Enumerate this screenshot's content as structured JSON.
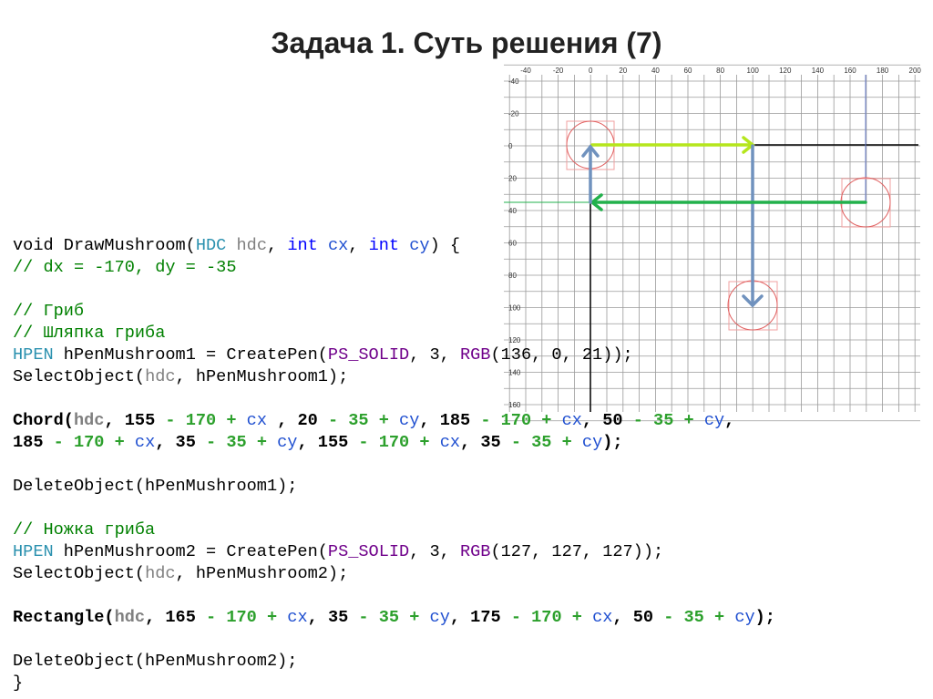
{
  "title": "Задача 1. Суть решения (7)",
  "diagram": {
    "x_labels": [
      -40,
      -20,
      0,
      20,
      40,
      60,
      80,
      100,
      120,
      140,
      160,
      180,
      200
    ],
    "y_labels": [
      -40,
      -20,
      0,
      20,
      40,
      60,
      80,
      100,
      120,
      140,
      160
    ]
  },
  "code": {
    "lines": [
      [
        [
          "void DrawMushroom(",
          "p"
        ],
        [
          "HDC",
          "t"
        ],
        [
          " hdc",
          "v"
        ],
        [
          ", ",
          "p"
        ],
        [
          "int",
          "k"
        ],
        [
          " cx",
          "pr"
        ],
        [
          ", ",
          "p"
        ],
        [
          "int",
          "k"
        ],
        [
          " cy",
          "pr"
        ],
        [
          ") {",
          "p"
        ]
      ],
      [
        [
          "    // dx = -170,  dy = -35",
          "c"
        ]
      ],
      [],
      [
        [
          "    // Гриб",
          "c"
        ]
      ],
      [
        [
          "    // Шляпка гриба",
          "c"
        ]
      ],
      [
        [
          "    ",
          "p"
        ],
        [
          "HPEN",
          "t"
        ],
        [
          " hPenMushroom1 = CreatePen(",
          "p"
        ],
        [
          "PS_SOLID",
          "m"
        ],
        [
          ", 3, ",
          "p"
        ],
        [
          "RGB",
          "m"
        ],
        [
          "(136, 0, 21));",
          "p"
        ]
      ],
      [
        [
          "    SelectObject(",
          "p"
        ],
        [
          "hdc",
          "v"
        ],
        [
          ", hPenMushroom1);",
          "p"
        ]
      ],
      [],
      [
        [
          "    Chord(",
          "b"
        ],
        [
          "hdc",
          "vb"
        ],
        [
          ", 155 ",
          "b"
        ],
        [
          "- 170 + ",
          "g"
        ],
        [
          "cx",
          "pr"
        ],
        [
          " , 20 ",
          "b"
        ],
        [
          "- 35 + ",
          "g"
        ],
        [
          "cy",
          "pr"
        ],
        [
          ", 185 ",
          "b"
        ],
        [
          "- 170 + ",
          "g"
        ],
        [
          "cx",
          "pr"
        ],
        [
          ", 50 ",
          "b"
        ],
        [
          "- 35 + ",
          "g"
        ],
        [
          "cy",
          "pr"
        ],
        [
          ",",
          "b"
        ]
      ],
      [
        [
          "        185 ",
          "b"
        ],
        [
          "- 170 + ",
          "g"
        ],
        [
          "cx",
          "pr"
        ],
        [
          ", 35 ",
          "b"
        ],
        [
          "- 35 + ",
          "g"
        ],
        [
          "cy",
          "pr"
        ],
        [
          ", 155 ",
          "b"
        ],
        [
          "- 170 + ",
          "g"
        ],
        [
          "cx",
          "pr"
        ],
        [
          ", 35 ",
          "b"
        ],
        [
          "- 35 + ",
          "g"
        ],
        [
          "cy",
          "pr"
        ],
        [
          ");",
          "b"
        ]
      ],
      [],
      [
        [
          "    DeleteObject(hPenMushroom1);",
          "p"
        ]
      ],
      [],
      [
        [
          "    // Ножка гриба",
          "c"
        ]
      ],
      [
        [
          "    ",
          "p"
        ],
        [
          "HPEN",
          "t"
        ],
        [
          " hPenMushroom2 = CreatePen(",
          "p"
        ],
        [
          "PS_SOLID",
          "m"
        ],
        [
          ", 3, ",
          "p"
        ],
        [
          "RGB",
          "m"
        ],
        [
          "(127, 127, 127));",
          "p"
        ]
      ],
      [
        [
          "    SelectObject(",
          "p"
        ],
        [
          "hdc",
          "v"
        ],
        [
          ", hPenMushroom2);",
          "p"
        ]
      ],
      [],
      [
        [
          "    Rectangle(",
          "b"
        ],
        [
          "hdc",
          "vb"
        ],
        [
          ", 165 ",
          "b"
        ],
        [
          "- 170 + ",
          "g"
        ],
        [
          "cx",
          "pr"
        ],
        [
          ", 35 ",
          "b"
        ],
        [
          "- 35 + ",
          "g"
        ],
        [
          "cy",
          "pr"
        ],
        [
          ", 175 ",
          "b"
        ],
        [
          "- 170 + ",
          "g"
        ],
        [
          "cx",
          "pr"
        ],
        [
          ", 50 ",
          "b"
        ],
        [
          "- 35 + ",
          "g"
        ],
        [
          "cy",
          "pr"
        ],
        [
          ");",
          "b"
        ]
      ],
      [],
      [
        [
          "    DeleteObject(hPenMushroom2);",
          "p"
        ]
      ],
      [
        [
          "}",
          "p"
        ]
      ]
    ]
  }
}
